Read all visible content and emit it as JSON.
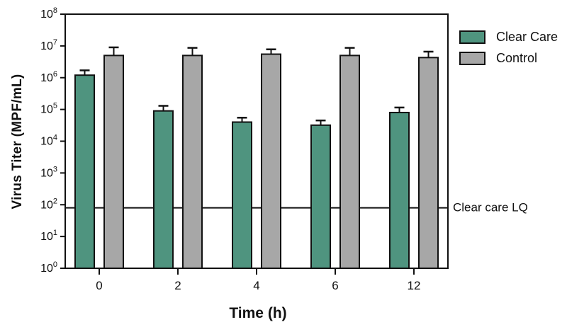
{
  "chart_data": {
    "type": "bar",
    "title": "",
    "xlabel": "Time (h)",
    "ylabel": "Virus Titer (MPF/mL)",
    "y_scale": "log10",
    "y_unit": "MPF/mL",
    "ylim": [
      1,
      100000000
    ],
    "y_tick_exponents": [
      0,
      1,
      2,
      3,
      4,
      5,
      6,
      7,
      8
    ],
    "y_tick_base": "10",
    "categories": [
      "0",
      "2",
      "4",
      "6",
      "12"
    ],
    "series": [
      {
        "name": "Clear Care",
        "color": "#4f947f",
        "values": [
          1200000,
          90000,
          40000,
          32000,
          80000
        ],
        "error_top": [
          1700000,
          130000,
          55000,
          45000,
          115000
        ]
      },
      {
        "name": "Control",
        "color": "#a7a7a7",
        "values": [
          5000000,
          5000000,
          5500000,
          5000000,
          4300000
        ],
        "error_top": [
          9000000,
          8700000,
          7800000,
          8700000,
          6600000
        ]
      }
    ],
    "reference_line": {
      "value": 80,
      "label": "Clear care LQ"
    },
    "legend_position": "top-right-outside",
    "grid": false,
    "frame": true,
    "axis_color": "#111111",
    "bar_border_color": "#111111",
    "error_bar_color": "#111111"
  }
}
